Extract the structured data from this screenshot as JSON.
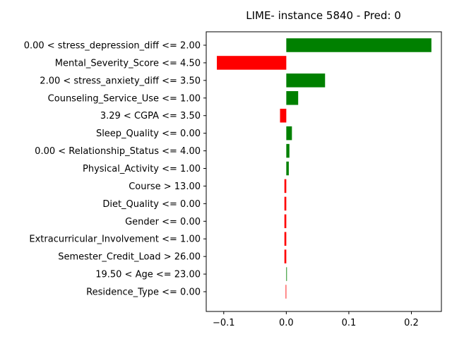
{
  "chart_data": {
    "type": "bar",
    "orientation": "horizontal",
    "title": "LIME- instance 5840 - Pred: 0",
    "xlabel": "",
    "ylabel": "",
    "xlim": [
      -0.128,
      0.248
    ],
    "xticks": [
      -0.1,
      0.0,
      0.1,
      0.2
    ],
    "xtick_labels": [
      "−0.1",
      "0.0",
      "0.1",
      "0.2"
    ],
    "grid": false,
    "positive_color": "#008000",
    "negative_color": "#ff0000",
    "categories": [
      "0.00 < stress_depression_diff <= 2.00",
      "Mental_Severity_Score <= 4.50",
      "2.00 < stress_anxiety_diff <= 3.50",
      "Counseling_Service_Use <= 1.00",
      "3.29 < CGPA <= 3.50",
      "Sleep_Quality <= 0.00",
      "0.00 < Relationship_Status <= 4.00",
      "Physical_Activity <= 1.00",
      "Course > 13.00",
      "Diet_Quality <= 0.00",
      "Gender <= 0.00",
      "Extracurricular_Involvement <= 1.00",
      "Semester_Credit_Load > 26.00",
      "19.50 < Age <= 23.00",
      "Residence_Type <= 0.00"
    ],
    "values": [
      0.232,
      -0.111,
      0.062,
      0.019,
      -0.01,
      0.009,
      0.005,
      0.004,
      -0.003,
      -0.003,
      -0.003,
      -0.003,
      -0.003,
      0.001,
      -0.001
    ]
  }
}
